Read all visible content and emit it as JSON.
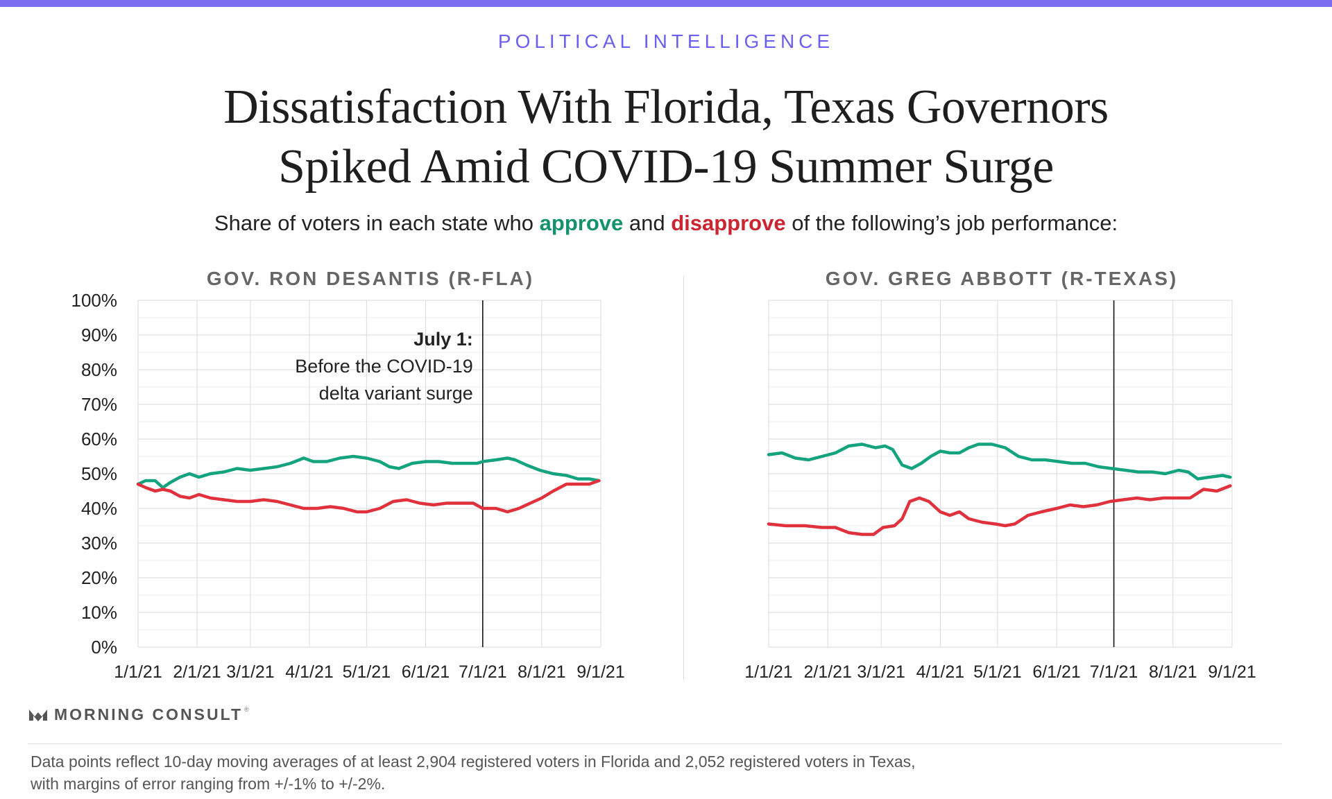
{
  "header": {
    "kicker": "POLITICAL INTELLIGENCE",
    "title_line1": "Dissatisfaction With Florida, Texas Governors",
    "title_line2": "Spiked Amid COVID-19 Summer Surge",
    "subtitle_pre": "Share of voters in each state who ",
    "subtitle_approve": "approve",
    "subtitle_mid": " and ",
    "subtitle_disapprove": "disapprove",
    "subtitle_post": " of the following’s job performance:"
  },
  "colors": {
    "approve": "#14a37f",
    "disapprove": "#e0313c",
    "accent": "#7b6cf0",
    "grid": "#dddddd"
  },
  "annotation": {
    "title": "July 1:",
    "line1": "Before the COVID-19",
    "line2": "delta variant surge",
    "x": "7/1/21"
  },
  "chart_data": [
    {
      "type": "line",
      "title": "GOV. RON DESANTIS (R-FLA)",
      "ylim": [
        0,
        100
      ],
      "y_ticks": [
        "0%",
        "10%",
        "20%",
        "30%",
        "40%",
        "50%",
        "60%",
        "70%",
        "80%",
        "90%",
        "100%"
      ],
      "x_ticks": [
        "1/1/21",
        "2/1/21",
        "3/1/21",
        "4/1/21",
        "5/1/21",
        "6/1/21",
        "7/1/21",
        "8/1/21",
        "9/1/21"
      ],
      "grid": true,
      "series": [
        {
          "name": "approve",
          "points": [
            [
              "1/1/21",
              47
            ],
            [
              "1/5/21",
              48
            ],
            [
              "1/10/21",
              48
            ],
            [
              "1/14/21",
              46
            ],
            [
              "1/18/21",
              47.5
            ],
            [
              "1/23/21",
              49
            ],
            [
              "1/28/21",
              50
            ],
            [
              "2/2/21",
              49
            ],
            [
              "2/8/21",
              50
            ],
            [
              "2/15/21",
              50.5
            ],
            [
              "2/22/21",
              51.5
            ],
            [
              "3/1/21",
              51
            ],
            [
              "3/8/21",
              51.5
            ],
            [
              "3/15/21",
              52
            ],
            [
              "3/22/21",
              53
            ],
            [
              "3/29/21",
              54.5
            ],
            [
              "4/3/21",
              53.5
            ],
            [
              "4/10/21",
              53.5
            ],
            [
              "4/17/21",
              54.5
            ],
            [
              "4/24/21",
              55
            ],
            [
              "5/1/21",
              54.5
            ],
            [
              "5/8/21",
              53.5
            ],
            [
              "5/13/21",
              52
            ],
            [
              "5/18/21",
              51.5
            ],
            [
              "5/25/21",
              53
            ],
            [
              "6/1/21",
              53.5
            ],
            [
              "6/8/21",
              53.5
            ],
            [
              "6/15/21",
              53
            ],
            [
              "6/22/21",
              53
            ],
            [
              "6/28/21",
              53
            ],
            [
              "7/1/21",
              53.5
            ],
            [
              "7/8/21",
              54
            ],
            [
              "7/14/21",
              54.5
            ],
            [
              "7/18/21",
              54
            ],
            [
              "7/24/21",
              52.5
            ],
            [
              "7/31/21",
              51
            ],
            [
              "8/7/21",
              50
            ],
            [
              "8/14/21",
              49.5
            ],
            [
              "8/20/21",
              48.5
            ],
            [
              "8/26/21",
              48.5
            ],
            [
              "8/31/21",
              48
            ]
          ]
        },
        {
          "name": "disapprove",
          "points": [
            [
              "1/1/21",
              47
            ],
            [
              "1/5/21",
              46
            ],
            [
              "1/10/21",
              45
            ],
            [
              "1/14/21",
              45.5
            ],
            [
              "1/18/21",
              45
            ],
            [
              "1/23/21",
              43.5
            ],
            [
              "1/28/21",
              43
            ],
            [
              "2/2/21",
              44
            ],
            [
              "2/8/21",
              43
            ],
            [
              "2/15/21",
              42.5
            ],
            [
              "2/22/21",
              42
            ],
            [
              "3/1/21",
              42
            ],
            [
              "3/8/21",
              42.5
            ],
            [
              "3/15/21",
              42
            ],
            [
              "3/22/21",
              41
            ],
            [
              "3/29/21",
              40
            ],
            [
              "4/5/21",
              40
            ],
            [
              "4/12/21",
              40.5
            ],
            [
              "4/19/21",
              40
            ],
            [
              "4/26/21",
              39
            ],
            [
              "5/1/21",
              39
            ],
            [
              "5/8/21",
              40
            ],
            [
              "5/15/21",
              42
            ],
            [
              "5/22/21",
              42.5
            ],
            [
              "5/29/21",
              41.5
            ],
            [
              "6/5/21",
              41
            ],
            [
              "6/12/21",
              41.5
            ],
            [
              "6/19/21",
              41.5
            ],
            [
              "6/26/21",
              41.5
            ],
            [
              "7/1/21",
              40
            ],
            [
              "7/8/21",
              40
            ],
            [
              "7/14/21",
              39
            ],
            [
              "7/20/21",
              40
            ],
            [
              "7/26/21",
              41.5
            ],
            [
              "8/1/21",
              43
            ],
            [
              "8/7/21",
              45
            ],
            [
              "8/14/21",
              47
            ],
            [
              "8/20/21",
              47
            ],
            [
              "8/26/21",
              47
            ],
            [
              "8/31/21",
              48
            ]
          ]
        }
      ]
    },
    {
      "type": "line",
      "title": "GOV. GREG ABBOTT (R-TEXAS)",
      "ylim": [
        0,
        100
      ],
      "x_ticks": [
        "1/1/21",
        "2/1/21",
        "3/1/21",
        "4/1/21",
        "5/1/21",
        "6/1/21",
        "7/1/21",
        "8/1/21",
        "9/1/21"
      ],
      "grid": true,
      "series": [
        {
          "name": "approve",
          "points": [
            [
              "1/1/21",
              55.5
            ],
            [
              "1/8/21",
              56
            ],
            [
              "1/15/21",
              54.5
            ],
            [
              "1/22/21",
              54
            ],
            [
              "1/29/21",
              55
            ],
            [
              "2/5/21",
              56
            ],
            [
              "2/12/21",
              58
            ],
            [
              "2/19/21",
              58.5
            ],
            [
              "2/26/21",
              57.5
            ],
            [
              "3/3/21",
              58
            ],
            [
              "3/7/21",
              57
            ],
            [
              "3/12/21",
              52.5
            ],
            [
              "3/17/21",
              51.5
            ],
            [
              "3/22/21",
              53
            ],
            [
              "3/27/21",
              55
            ],
            [
              "4/1/21",
              56.5
            ],
            [
              "4/6/21",
              56
            ],
            [
              "4/11/21",
              56
            ],
            [
              "4/16/21",
              57.5
            ],
            [
              "4/21/21",
              58.5
            ],
            [
              "4/28/21",
              58.5
            ],
            [
              "5/5/21",
              57.5
            ],
            [
              "5/12/21",
              55
            ],
            [
              "5/19/21",
              54
            ],
            [
              "5/26/21",
              54
            ],
            [
              "6/2/21",
              53.5
            ],
            [
              "6/9/21",
              53
            ],
            [
              "6/16/21",
              53
            ],
            [
              "6/23/21",
              52
            ],
            [
              "6/30/21",
              51.5
            ],
            [
              "7/7/21",
              51
            ],
            [
              "7/14/21",
              50.5
            ],
            [
              "7/21/21",
              50.5
            ],
            [
              "7/28/21",
              50
            ],
            [
              "8/4/21",
              51
            ],
            [
              "8/9/21",
              50.5
            ],
            [
              "8/14/21",
              48.5
            ],
            [
              "8/20/21",
              49
            ],
            [
              "8/27/21",
              49.5
            ],
            [
              "8/31/21",
              49
            ]
          ]
        },
        {
          "name": "disapprove",
          "points": [
            [
              "1/1/21",
              35.5
            ],
            [
              "1/10/21",
              35
            ],
            [
              "1/20/21",
              35
            ],
            [
              "1/29/21",
              34.5
            ],
            [
              "2/5/21",
              34.5
            ],
            [
              "2/12/21",
              33
            ],
            [
              "2/19/21",
              32.5
            ],
            [
              "2/25/21",
              32.5
            ],
            [
              "3/2/21",
              34.5
            ],
            [
              "3/8/21",
              35
            ],
            [
              "3/12/21",
              37
            ],
            [
              "3/16/21",
              42
            ],
            [
              "3/21/21",
              43
            ],
            [
              "3/26/21",
              42
            ],
            [
              "4/1/21",
              39
            ],
            [
              "4/6/21",
              38
            ],
            [
              "4/11/21",
              39
            ],
            [
              "4/16/21",
              37
            ],
            [
              "4/23/21",
              36
            ],
            [
              "4/30/21",
              35.5
            ],
            [
              "5/5/21",
              35
            ],
            [
              "5/10/21",
              35.5
            ],
            [
              "5/17/21",
              38
            ],
            [
              "5/24/21",
              39
            ],
            [
              "6/1/21",
              40
            ],
            [
              "6/8/21",
              41
            ],
            [
              "6/15/21",
              40.5
            ],
            [
              "6/22/21",
              41
            ],
            [
              "6/29/21",
              42
            ],
            [
              "7/6/21",
              42.5
            ],
            [
              "7/13/21",
              43
            ],
            [
              "7/20/21",
              42.5
            ],
            [
              "7/27/21",
              43
            ],
            [
              "8/3/21",
              43
            ],
            [
              "8/10/21",
              43
            ],
            [
              "8/17/21",
              45.5
            ],
            [
              "8/24/21",
              45
            ],
            [
              "8/31/21",
              46.5
            ]
          ]
        }
      ]
    }
  ],
  "footer": {
    "logo_text": "MORNING CONSULT",
    "logo_mark": "®",
    "note_line1": "Data points reflect 10-day moving averages of at least 2,904 registered voters in Florida and 2,052 registered voters in Texas,",
    "note_line2": "with margins of error ranging from +/-1% to +/-2%."
  }
}
